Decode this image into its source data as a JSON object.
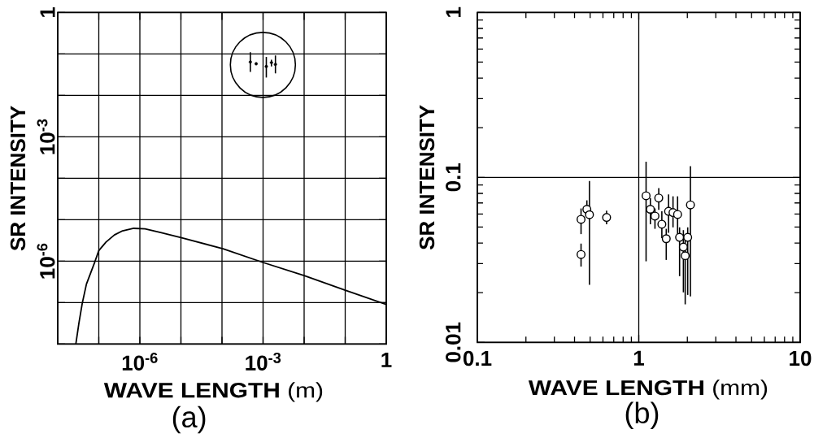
{
  "chart_data": [
    {
      "type": "line",
      "title": "(a)",
      "xlabel": "**WAVE LENGTH**  (m)",
      "ylabel": "SR INTENSITY",
      "log": "xy",
      "grid": true,
      "xlim": [
        1e-08,
        1
      ],
      "ylim": [
        1e-08,
        1
      ],
      "xticks": [
        {
          "value": 1e-08,
          "label": null
        },
        {
          "value": 1e-07,
          "label": null
        },
        {
          "value": 1e-06,
          "label": "10$^{-6}$"
        },
        {
          "value": 1e-05,
          "label": null
        },
        {
          "value": 0.0001,
          "label": null
        },
        {
          "value": 0.001,
          "label": "10$^{-3}$"
        },
        {
          "value": 0.01,
          "label": null
        },
        {
          "value": 0.1,
          "label": null
        },
        1
      ],
      "yticks": [
        {
          "value": 1e-08,
          "label": null
        },
        {
          "value": 1e-07,
          "label": null
        },
        {
          "value": 1e-06,
          "label": "10$^{-6}$"
        },
        {
          "value": 1e-05,
          "label": null
        },
        {
          "value": 0.0001,
          "label": null
        },
        {
          "value": 0.001,
          "label": "10$^{-3}$"
        },
        {
          "value": 0.01,
          "label": null
        },
        {
          "value": 0.1,
          "label": null
        },
        1
      ],
      "series": [
        {
          "color": "#000000",
          "marker": "none",
          "line_style": "solid",
          "x": [
            2.76e-08,
            3.28e-08,
            3.96e-08,
            5e-08,
            8e-08,
            1e-07,
            1.5e-07,
            2.4e-07,
            3.8e-07,
            7.1e-07,
            1.34e-06,
            3.2e-06,
            1e-05,
            0.000106,
            0.001,
            0.01,
            0.1,
            1
          ],
          "values": [
            1e-08,
            3.2e-08,
            9.7e-08,
            2.8e-07,
            9.6e-07,
            1.8e-06,
            2.9e-06,
            4.3e-06,
            5.4e-06,
            6.2e-06,
            6e-06,
            4.9e-06,
            3.7e-06,
            2e-06,
            9.3e-07,
            4.5e-07,
            2e-07,
            9e-08
          ]
        },
        {
          "type": "scatter",
          "color": "#000000",
          "marker": "circle",
          "x": [
            0.00049,
            0.00068,
            0.0012,
            0.0016,
            0.002
          ],
          "values": [
            0.064,
            0.058,
            0.05,
            0.062,
            0.056
          ],
          "errors": [
            [
              0.037,
              0.11
            ],
            null,
            [
              0.027,
              0.085
            ],
            [
              0.05,
              0.073
            ],
            [
              0.034,
              0.092
            ]
          ]
        }
      ]
    },
    {
      "type": "scatter",
      "title": "(b)",
      "xlabel": "**WAVE LENGTH**  (mm)",
      "ylabel": "SR INTENSITY",
      "log": "xy",
      "grid": true,
      "xlim": [
        0.1,
        10
      ],
      "ylim": [
        0.01,
        1
      ],
      "xticks": [
        0.1,
        {
          "value": 0.2,
          "label": null
        },
        {
          "value": 0.3,
          "label": null
        },
        {
          "value": 0.4,
          "label": null
        },
        {
          "value": 0.5,
          "label": null
        },
        {
          "value": 0.6,
          "label": null
        },
        {
          "value": 0.7,
          "label": null
        },
        {
          "value": 0.8,
          "label": null
        },
        {
          "value": 0.9,
          "label": null
        },
        1,
        {
          "value": 2,
          "label": null
        },
        {
          "value": 3,
          "label": null
        },
        {
          "value": 4,
          "label": null
        },
        {
          "value": 5,
          "label": null
        },
        {
          "value": 6,
          "label": null
        },
        {
          "value": 7,
          "label": null
        },
        {
          "value": 8,
          "label": null
        },
        {
          "value": 9,
          "label": null
        },
        10
      ],
      "yticks": [
        0.01,
        {
          "value": 0.02,
          "label": null
        },
        {
          "value": 0.03,
          "label": null
        },
        {
          "value": 0.04,
          "label": null
        },
        {
          "value": 0.05,
          "label": null
        },
        {
          "value": 0.06,
          "label": null
        },
        {
          "value": 0.07,
          "label": null
        },
        {
          "value": 0.08,
          "label": null
        },
        {
          "value": 0.09,
          "label": null
        },
        0.1,
        {
          "value": 0.2,
          "label": null
        },
        {
          "value": 0.3,
          "label": null
        },
        {
          "value": 0.4,
          "label": null
        },
        {
          "value": 0.5,
          "label": null
        },
        {
          "value": 0.6,
          "label": null
        },
        {
          "value": 0.7,
          "label": null
        },
        {
          "value": 0.8,
          "label": null
        },
        {
          "value": 0.9,
          "label": null
        },
        1
      ],
      "series": [
        {
          "color": "#000000",
          "marker": "circle",
          "x": [
            0.439,
            0.477,
            0.495,
            0.439,
            0.632,
            1.11,
            1.18,
            1.33,
            1.26,
            1.39,
            1.48,
            1.53,
            1.63,
            1.74,
            1.79,
            1.89,
            1.94,
            2.01,
            2.09
          ],
          "values": [
            0.0557,
            0.0641,
            0.0594,
            0.0341,
            0.0572,
            0.0774,
            0.0641,
            0.075,
            0.0583,
            0.052,
            0.0425,
            0.0623,
            0.0612,
            0.0596,
            0.0433,
            0.0378,
            0.0335,
            0.0433,
            0.0681
          ],
          "errors": [
            [
              0.0453,
              0.0648
            ],
            [
              0.0579,
              0.0726
            ],
            [
              0.0223,
              0.0952
            ],
            [
              0.0288,
              0.0397
            ],
            [
              0.052,
              0.0628
            ],
            [
              0.031,
              0.1245
            ],
            [
              0.052,
              0.075
            ],
            [
              0.0636,
              0.086
            ],
            [
              0.0488,
              0.0648
            ],
            [
              0.0428,
              0.0623
            ],
            [
              0.0316,
              0.0488
            ],
            [
              0.0461,
              0.0788
            ],
            [
              0.0498,
              0.0768
            ],
            [
              0.0445,
              0.0768
            ],
            [
              0.0252,
              0.0498
            ],
            [
              0.0201,
              0.0479
            ],
            [
              0.017,
              0.0445
            ],
            [
              0.0194,
              0.0498
            ],
            [
              0.019,
              0.117
            ]
          ]
        }
      ]
    }
  ]
}
